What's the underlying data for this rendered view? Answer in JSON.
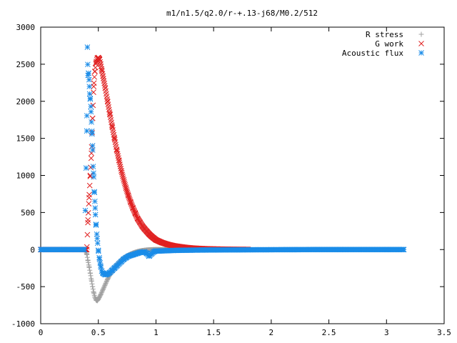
{
  "chart_data": {
    "type": "scatter",
    "title": "m1/n1.5/q2.0/r-+.13-j68/M0.2/512",
    "xlabel": "",
    "ylabel": "",
    "xlim": [
      0,
      3.5
    ],
    "ylim": [
      -1000,
      3000
    ],
    "xticks": [
      0,
      0.5,
      1,
      1.5,
      2,
      2.5,
      3,
      3.5
    ],
    "xtick_labels": [
      "0",
      "0.5",
      "1",
      "1.5",
      "2",
      "2.5",
      "3",
      "3.5"
    ],
    "yticks": [
      -1000,
      -500,
      0,
      500,
      1000,
      1500,
      2000,
      2500,
      3000
    ],
    "ytick_labels": [
      "-1000",
      "-500",
      "0",
      "500",
      "1000",
      "1500",
      "2000",
      "2500",
      "3000"
    ],
    "grid": false,
    "legend_position": "top-right",
    "series": [
      {
        "name": "R stress",
        "marker": "plus",
        "color": "#a0a0a0",
        "x": [
          0.0,
          0.2,
          0.38,
          0.39,
          0.4,
          0.41,
          0.42,
          0.43,
          0.44,
          0.45,
          0.46,
          0.47,
          0.48,
          0.49,
          0.5,
          0.52,
          0.54,
          0.56,
          0.58,
          0.6,
          0.62,
          0.64,
          0.66,
          0.68,
          0.7,
          0.72,
          0.74,
          0.76,
          0.78,
          0.8,
          0.82,
          0.84,
          0.86,
          0.88,
          0.9,
          0.92,
          0.94,
          0.96,
          0.98,
          1.0,
          1.02,
          1.04,
          1.06,
          1.08,
          1.1,
          1.15,
          1.2,
          1.25,
          1.3,
          1.4,
          1.5,
          1.6,
          1.7,
          1.8
        ],
        "y": [
          0,
          0,
          0,
          -20,
          -60,
          -150,
          -230,
          -320,
          -410,
          -500,
          -580,
          -640,
          -680,
          -690,
          -670,
          -610,
          -540,
          -470,
          -400,
          -340,
          -290,
          -245,
          -205,
          -170,
          -140,
          -115,
          -95,
          -75,
          -60,
          -47,
          -36,
          -27,
          -20,
          -14,
          -10,
          -6,
          -4,
          -2,
          -1,
          0,
          0,
          0,
          0,
          0,
          0,
          0,
          0,
          0,
          0,
          0,
          0,
          0,
          0,
          0
        ]
      },
      {
        "name": "G work",
        "marker": "cross",
        "color": "#e02020",
        "x": [
          0.0,
          0.2,
          0.4,
          0.41,
          0.42,
          0.43,
          0.44,
          0.45,
          0.46,
          0.47,
          0.48,
          0.49,
          0.5,
          0.51,
          0.52,
          0.53,
          0.54,
          0.56,
          0.58,
          0.6,
          0.62,
          0.64,
          0.66,
          0.68,
          0.7,
          0.72,
          0.74,
          0.76,
          0.78,
          0.8,
          0.82,
          0.84,
          0.86,
          0.88,
          0.9,
          0.92,
          0.94,
          0.96,
          0.98,
          1.0,
          1.05,
          1.1,
          1.15,
          1.2,
          1.25,
          1.3,
          1.35,
          1.4,
          1.5,
          1.6,
          1.7,
          1.8
        ],
        "y": [
          0,
          0,
          0,
          400,
          700,
          1000,
          1300,
          1770,
          2200,
          2400,
          2520,
          2580,
          2590,
          2570,
          2500,
          2420,
          2340,
          2180,
          2000,
          1830,
          1660,
          1500,
          1340,
          1200,
          1060,
          940,
          830,
          730,
          640,
          560,
          490,
          420,
          370,
          320,
          280,
          245,
          210,
          180,
          155,
          130,
          95,
          70,
          52,
          40,
          30,
          22,
          17,
          13,
          8,
          5,
          3,
          2
        ]
      },
      {
        "name": "Acoustic flux",
        "marker": "star",
        "color": "#1a8ce8",
        "x": [
          0.0,
          0.2,
          0.38,
          0.4,
          0.405,
          0.41,
          0.415,
          0.42,
          0.425,
          0.43,
          0.435,
          0.44,
          0.445,
          0.45,
          0.455,
          0.46,
          0.465,
          0.47,
          0.475,
          0.48,
          0.49,
          0.5,
          0.51,
          0.52,
          0.53,
          0.54,
          0.56,
          0.58,
          0.6,
          0.62,
          0.64,
          0.66,
          0.68,
          0.7,
          0.72,
          0.74,
          0.76,
          0.78,
          0.8,
          0.82,
          0.84,
          0.86,
          0.88,
          0.9,
          0.92,
          0.94,
          0.96,
          0.98,
          1.0,
          1.02,
          1.05,
          1.1,
          1.15,
          1.2,
          1.3,
          1.4,
          1.5,
          1.6,
          1.8,
          2.0,
          2.2,
          2.4,
          2.6,
          2.8,
          3.0,
          3.15
        ],
        "y": [
          0,
          0,
          0,
          1600,
          2730,
          2350,
          2380,
          2290,
          2100,
          2030,
          1930,
          1720,
          1560,
          1400,
          1120,
          980,
          780,
          650,
          470,
          330,
          150,
          -10,
          -130,
          -220,
          -290,
          -320,
          -340,
          -330,
          -310,
          -280,
          -250,
          -220,
          -190,
          -160,
          -130,
          -110,
          -90,
          -80,
          -70,
          -60,
          -50,
          -40,
          -35,
          -30,
          -50,
          -90,
          -60,
          -30,
          -20,
          -20,
          -18,
          -15,
          -12,
          -10,
          -8,
          -6,
          -5,
          -4,
          -3,
          -2,
          -1,
          0,
          0,
          0,
          0,
          0
        ]
      }
    ]
  }
}
